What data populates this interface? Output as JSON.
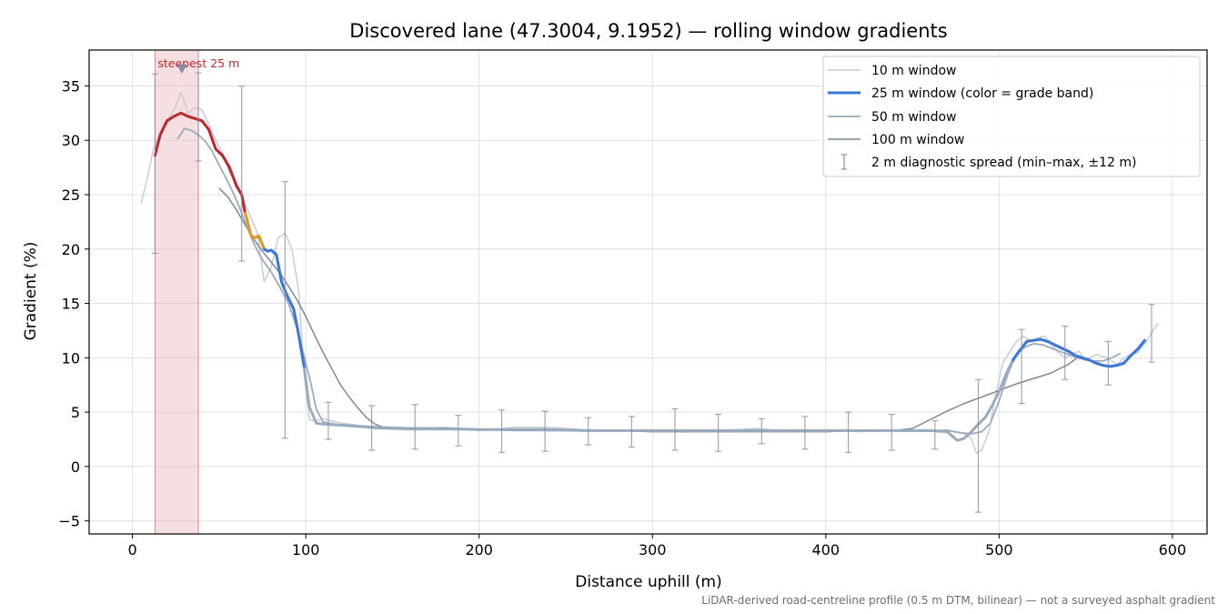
{
  "chart_data": {
    "type": "line",
    "title": "Discovered lane (47.3004, 9.1952) — rolling window gradients",
    "xlabel": "Distance uphill (m)",
    "ylabel": "Gradient (%)",
    "xlim": [
      -25,
      620
    ],
    "ylim": [
      -6.2,
      38.3
    ],
    "xticks": [
      0,
      100,
      200,
      300,
      400,
      500,
      600
    ],
    "yticks": [
      -5,
      0,
      5,
      10,
      15,
      20,
      25,
      30,
      35
    ],
    "ytick_labels": [
      "−5",
      "0",
      "5",
      "10",
      "15",
      "20",
      "25",
      "30",
      "35"
    ],
    "grid": true,
    "legend_position": "upper right",
    "footnote": "LiDAR-derived road-centreline profile (0.5 m DTM, bilinear) — not a surveyed asphalt gradient",
    "annotation": {
      "text": "steepest 25 m",
      "x_range": [
        13,
        38
      ],
      "marker_x": 28.5,
      "marker_y": 36.6
    },
    "colors": {
      "steep": "#c0272d",
      "moderate": "#e09b1b",
      "gentle": "#3a78d8",
      "window10": "#c4cad5",
      "window50": "#9aabbd",
      "window100": "#7f8797",
      "errorbar": "#8e8aae",
      "band": "#e9b7bd"
    },
    "series": [
      {
        "name": "10 m window",
        "x": [
          5,
          9,
          12,
          16,
          20,
          24,
          28,
          32,
          36,
          40,
          44,
          48,
          52,
          56,
          60,
          64,
          68,
          72,
          76,
          80,
          84,
          88,
          92,
          96,
          99,
          102,
          106,
          110,
          120,
          140,
          160,
          180,
          200,
          220,
          240,
          260,
          280,
          300,
          320,
          340,
          360,
          380,
          400,
          420,
          440,
          460,
          470,
          480,
          484,
          487,
          490,
          494,
          498,
          502,
          506,
          510,
          514,
          518,
          522,
          526,
          530,
          534,
          538,
          542,
          546,
          550,
          556,
          562,
          568,
          574,
          580,
          585,
          590,
          592
        ],
        "y": [
          24.2,
          26.8,
          29.2,
          30.5,
          31.8,
          32.8,
          34.4,
          32.5,
          33.0,
          32.8,
          31.5,
          30.0,
          28.8,
          27.0,
          26.0,
          24.5,
          23.0,
          21.5,
          17.0,
          18.3,
          21.0,
          21.5,
          20.0,
          16.0,
          8.5,
          4.3,
          4.2,
          4.4,
          4.0,
          3.6,
          3.5,
          3.6,
          3.3,
          3.6,
          3.6,
          3.4,
          3.3,
          3.2,
          3.3,
          3.3,
          3.5,
          3.2,
          3.3,
          3.2,
          3.3,
          3.3,
          3.4,
          3.0,
          2.6,
          1.2,
          1.5,
          3.2,
          6.5,
          9.5,
          10.5,
          11.5,
          12.0,
          11.6,
          11.8,
          12.0,
          11.3,
          10.5,
          10.0,
          10.3,
          10.6,
          9.8,
          10.3,
          10.0,
          9.4,
          10.2,
          10.5,
          11.5,
          12.8,
          13.2
        ]
      },
      {
        "name": "25 m window (color = grade band)",
        "x": [
          13,
          16,
          20,
          24,
          28,
          32,
          36,
          40,
          44,
          48,
          52,
          56,
          60,
          63,
          65,
          66,
          68,
          70,
          73,
          76,
          78,
          80,
          83,
          86,
          89,
          93,
          96,
          99,
          102,
          106,
          110,
          120,
          140,
          160,
          180,
          200,
          220,
          240,
          260,
          280,
          300,
          320,
          340,
          360,
          380,
          400,
          420,
          440,
          460,
          470,
          476,
          480,
          484,
          488,
          492,
          496,
          500,
          504,
          508,
          512,
          516,
          520,
          524,
          528,
          532,
          536,
          540,
          544,
          548,
          552,
          556,
          560,
          564,
          568,
          572,
          576,
          580,
          584
        ],
        "y": [
          28.6,
          30.5,
          31.8,
          32.2,
          32.5,
          32.2,
          32.0,
          31.8,
          31.0,
          29.2,
          28.6,
          27.5,
          25.8,
          25.0,
          23.3,
          22.8,
          21.4,
          21.0,
          21.2,
          20.0,
          19.8,
          19.9,
          19.5,
          17.0,
          15.8,
          14.5,
          12.0,
          9.2,
          5.5,
          4.0,
          3.9,
          3.8,
          3.6,
          3.5,
          3.5,
          3.4,
          3.4,
          3.4,
          3.3,
          3.3,
          3.3,
          3.3,
          3.3,
          3.3,
          3.3,
          3.3,
          3.3,
          3.3,
          3.3,
          3.2,
          2.4,
          2.6,
          3.2,
          3.9,
          4.5,
          5.6,
          6.9,
          8.5,
          9.8,
          10.7,
          11.5,
          11.6,
          11.7,
          11.5,
          11.2,
          10.9,
          10.6,
          10.2,
          10.0,
          9.8,
          9.5,
          9.3,
          9.2,
          9.3,
          9.5,
          10.2,
          10.8,
          11.6
        ]
      },
      {
        "name": "50 m window",
        "x": [
          26,
          30,
          34,
          38,
          42,
          46,
          50,
          55,
          60,
          65,
          70,
          75,
          80,
          85,
          90,
          95,
          100,
          103,
          106,
          110,
          120,
          140,
          160,
          180,
          200,
          220,
          240,
          260,
          280,
          300,
          320,
          340,
          360,
          380,
          400,
          420,
          440,
          460,
          470,
          478,
          484,
          490,
          495,
          500,
          505,
          510,
          515,
          520,
          525,
          530,
          535,
          540,
          545,
          550,
          555,
          560,
          565,
          570
        ],
        "y": [
          30.1,
          31.1,
          30.9,
          30.5,
          29.9,
          29.0,
          27.7,
          26.2,
          24.5,
          22.5,
          20.5,
          19.0,
          17.9,
          16.5,
          15.0,
          12.7,
          9.5,
          7.6,
          5.3,
          4.1,
          3.8,
          3.5,
          3.4,
          3.4,
          3.4,
          3.4,
          3.3,
          3.3,
          3.3,
          3.3,
          3.3,
          3.3,
          3.3,
          3.3,
          3.3,
          3.3,
          3.3,
          3.3,
          3.3,
          3.1,
          3.0,
          3.2,
          4.0,
          6.0,
          8.5,
          10.3,
          11.0,
          11.3,
          11.2,
          10.9,
          10.6,
          10.3,
          10.0,
          9.8,
          9.7,
          9.7,
          10.0,
          10.4
        ]
      },
      {
        "name": "100 m window",
        "x": [
          50,
          55,
          60,
          65,
          70,
          75,
          80,
          85,
          90,
          95,
          100,
          105,
          110,
          115,
          120,
          125,
          130,
          135,
          140,
          145,
          150,
          160,
          180,
          200,
          220,
          240,
          260,
          280,
          300,
          320,
          340,
          360,
          380,
          400,
          420,
          440,
          450,
          460,
          470,
          480,
          490,
          500,
          510,
          520,
          530,
          540,
          545
        ],
        "y": [
          25.6,
          24.8,
          23.6,
          22.2,
          20.9,
          19.8,
          18.8,
          17.8,
          16.6,
          15.3,
          13.8,
          12.1,
          10.5,
          9.0,
          7.5,
          6.4,
          5.4,
          4.5,
          3.9,
          3.6,
          3.5,
          3.4,
          3.4,
          3.4,
          3.3,
          3.3,
          3.3,
          3.3,
          3.2,
          3.2,
          3.2,
          3.2,
          3.2,
          3.2,
          3.3,
          3.3,
          3.5,
          4.3,
          5.1,
          5.8,
          6.4,
          7.0,
          7.6,
          8.1,
          8.6,
          9.4,
          10.0
        ]
      }
    ],
    "grade_bands": [
      {
        "from_x": 13,
        "to_x": 65,
        "color": "#c0272d"
      },
      {
        "from_x": 65,
        "to_x": 76,
        "color": "#e09b1b"
      },
      {
        "from_x": 76,
        "to_x": 584,
        "color": "#3a78d8"
      }
    ],
    "errorbars": {
      "name": "2 m diagnostic spread (min–max, ±12 m)",
      "points": [
        {
          "x": 13,
          "y": 28.5,
          "lo": 19.6,
          "hi": 36.1
        },
        {
          "x": 38,
          "y": 31.8,
          "lo": 28.1,
          "hi": 36.2
        },
        {
          "x": 63,
          "y": 25.0,
          "lo": 18.9,
          "hi": 35.0
        },
        {
          "x": 88,
          "y": 15.9,
          "lo": 2.6,
          "hi": 26.2
        },
        {
          "x": 113,
          "y": 4.0,
          "lo": 2.5,
          "hi": 5.9
        },
        {
          "x": 138,
          "y": 3.6,
          "lo": 1.5,
          "hi": 5.6
        },
        {
          "x": 163,
          "y": 3.5,
          "lo": 1.6,
          "hi": 5.7
        },
        {
          "x": 188,
          "y": 3.4,
          "lo": 1.9,
          "hi": 4.7
        },
        {
          "x": 213,
          "y": 3.4,
          "lo": 1.3,
          "hi": 5.2
        },
        {
          "x": 238,
          "y": 3.4,
          "lo": 1.4,
          "hi": 5.1
        },
        {
          "x": 263,
          "y": 3.3,
          "lo": 2.0,
          "hi": 4.5
        },
        {
          "x": 288,
          "y": 3.3,
          "lo": 1.8,
          "hi": 4.6
        },
        {
          "x": 313,
          "y": 3.3,
          "lo": 1.5,
          "hi": 5.3
        },
        {
          "x": 338,
          "y": 3.3,
          "lo": 1.4,
          "hi": 4.8
        },
        {
          "x": 363,
          "y": 3.3,
          "lo": 2.1,
          "hi": 4.4
        },
        {
          "x": 388,
          "y": 3.3,
          "lo": 1.6,
          "hi": 4.6
        },
        {
          "x": 413,
          "y": 3.3,
          "lo": 1.3,
          "hi": 5.0
        },
        {
          "x": 438,
          "y": 3.3,
          "lo": 1.5,
          "hi": 4.8
        },
        {
          "x": 463,
          "y": 3.3,
          "lo": 1.6,
          "hi": 4.2
        },
        {
          "x": 488,
          "y": 3.5,
          "lo": -4.2,
          "hi": 8.0
        },
        {
          "x": 513,
          "y": 10.5,
          "lo": 5.8,
          "hi": 12.6
        },
        {
          "x": 538,
          "y": 10.5,
          "lo": 8.0,
          "hi": 12.9
        },
        {
          "x": 563,
          "y": 9.3,
          "lo": 7.5,
          "hi": 11.5
        },
        {
          "x": 588,
          "y": 12.0,
          "lo": 9.6,
          "hi": 14.9
        }
      ]
    }
  }
}
